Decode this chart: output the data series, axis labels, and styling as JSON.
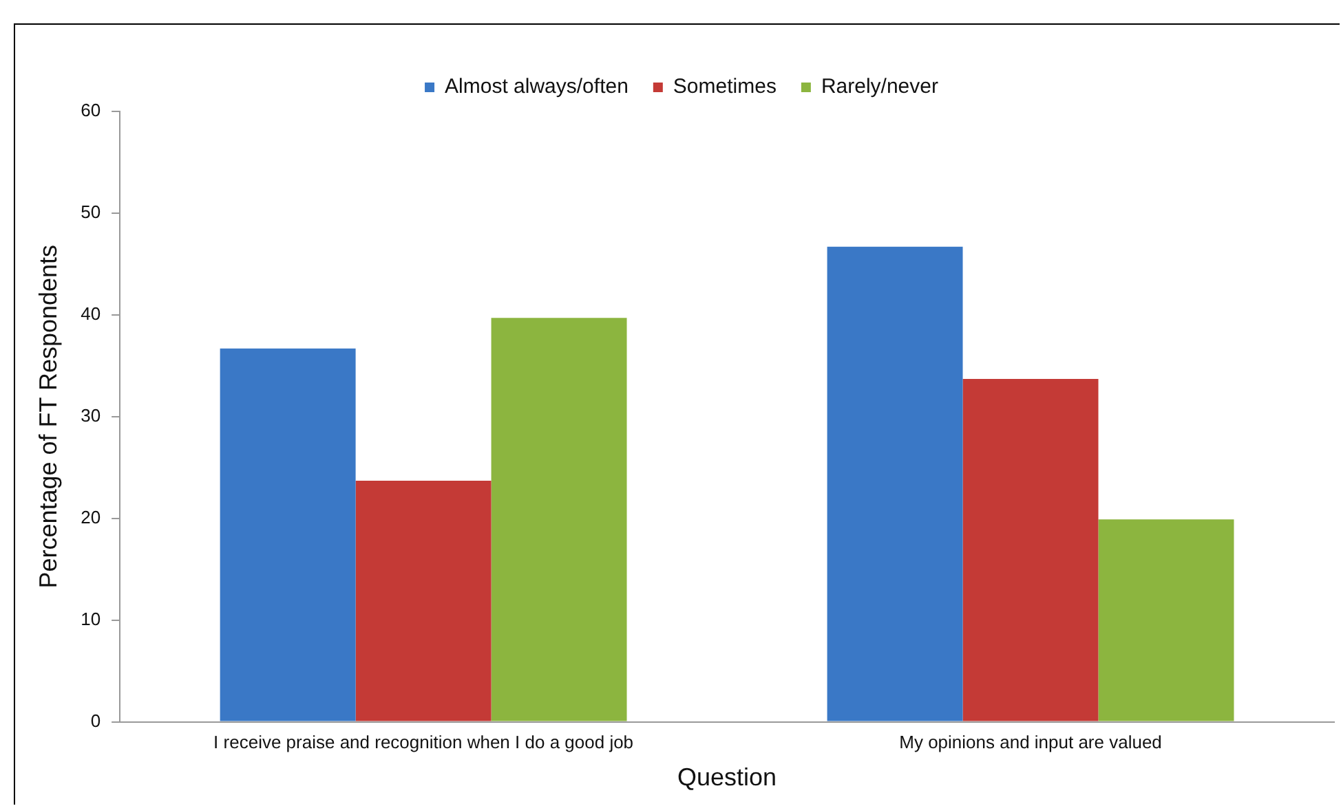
{
  "chart_data": {
    "type": "bar",
    "xlabel": "Question",
    "ylabel": "Percentage of FT Respondents",
    "categories": [
      "I receive praise and recognition when I do a good job",
      "My opinions and input are valued"
    ],
    "series": [
      {
        "name": "Almost always/often",
        "color": "#3a78c6",
        "values": [
          36.7,
          46.7
        ]
      },
      {
        "name": "Sometimes",
        "color": "#c43a36",
        "values": [
          23.7,
          33.7
        ]
      },
      {
        "name": "Rarely/never",
        "color": "#8cb53f",
        "values": [
          39.7,
          19.9
        ]
      }
    ],
    "ylim": [
      0,
      60
    ],
    "yticks": [
      0,
      10,
      20,
      30,
      40,
      50,
      60
    ],
    "grid": false,
    "legend": "top"
  }
}
